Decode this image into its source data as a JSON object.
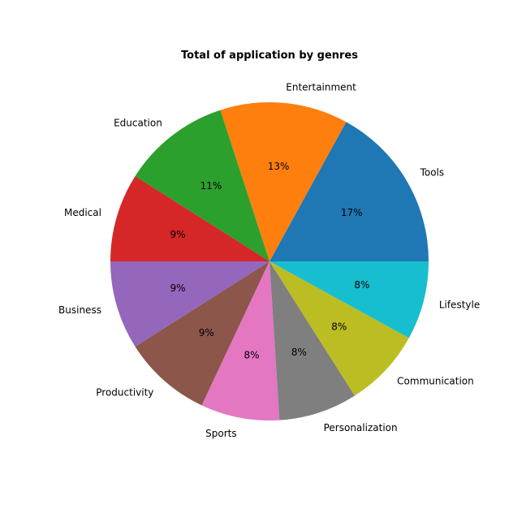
{
  "chart_data": {
    "type": "pie",
    "title": "Total of application by genres",
    "slices": [
      {
        "label": "Tools",
        "value": 17,
        "pct_label": "17%",
        "color": "#1f77b4"
      },
      {
        "label": "Entertainment",
        "value": 13,
        "pct_label": "13%",
        "color": "#ff7f0e"
      },
      {
        "label": "Education",
        "value": 11,
        "pct_label": "11%",
        "color": "#2ca02c"
      },
      {
        "label": "Medical",
        "value": 9,
        "pct_label": "9%",
        "color": "#d62728"
      },
      {
        "label": "Business",
        "value": 9,
        "pct_label": "9%",
        "color": "#9467bd"
      },
      {
        "label": "Productivity",
        "value": 9,
        "pct_label": "9%",
        "color": "#8c564b"
      },
      {
        "label": "Sports",
        "value": 8,
        "pct_label": "8%",
        "color": "#e377c2"
      },
      {
        "label": "Personalization",
        "value": 8,
        "pct_label": "8%",
        "color": "#7f7f7f"
      },
      {
        "label": "Communication",
        "value": 8,
        "pct_label": "8%",
        "color": "#bcbd22"
      },
      {
        "label": "Lifestyle",
        "value": 8,
        "pct_label": "8%",
        "color": "#17becf"
      }
    ],
    "start_angle_deg": 0,
    "direction": "counterclockwise",
    "legend": "none"
  }
}
